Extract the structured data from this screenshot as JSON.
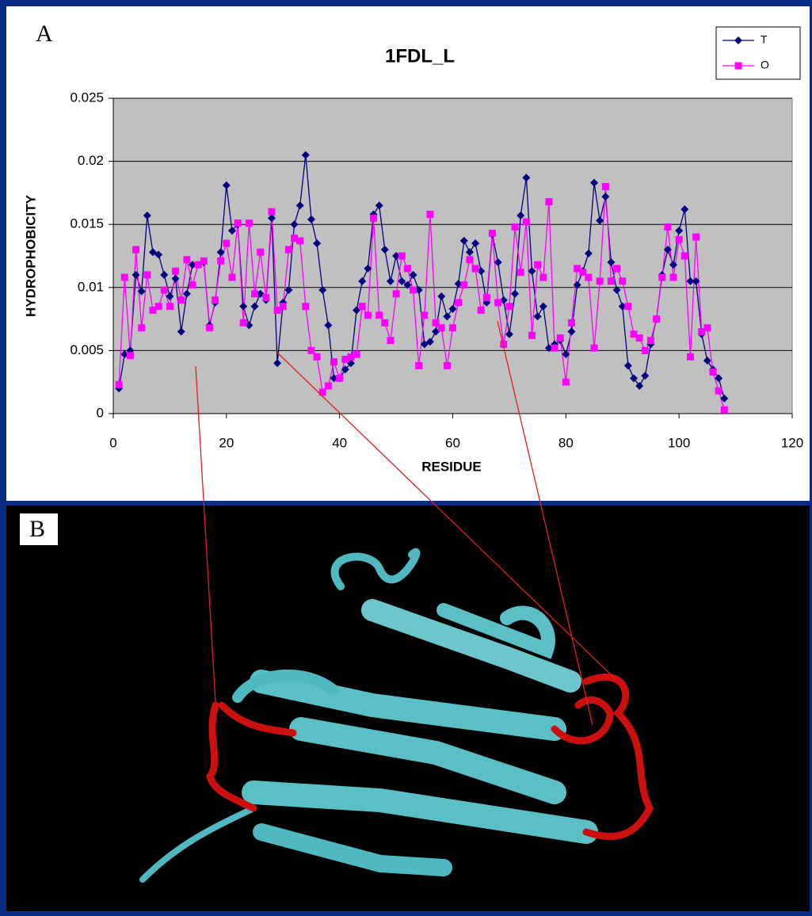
{
  "figure": {
    "panel_a_label": "A",
    "panel_b_label": "B"
  },
  "chart_data": {
    "type": "line",
    "title": "1FDL_L",
    "x_label": "RESIDUE",
    "y_label": "HYDROPHOBICITY",
    "x": [
      1,
      2,
      3,
      4,
      5,
      6,
      7,
      8,
      9,
      10,
      11,
      12,
      13,
      14,
      15,
      16,
      17,
      18,
      19,
      20,
      21,
      22,
      23,
      24,
      25,
      26,
      27,
      28,
      29,
      30,
      31,
      32,
      33,
      34,
      35,
      36,
      37,
      38,
      39,
      40,
      41,
      42,
      43,
      44,
      45,
      46,
      47,
      48,
      49,
      50,
      51,
      52,
      53,
      54,
      55,
      56,
      57,
      58,
      59,
      60,
      61,
      62,
      63,
      64,
      65,
      66,
      67,
      68,
      69,
      70,
      71,
      72,
      73,
      74,
      75,
      76,
      77,
      78,
      79,
      80,
      81,
      82,
      83,
      84,
      85,
      86,
      87,
      88,
      89,
      90,
      91,
      92,
      93,
      94,
      95,
      96,
      97,
      98,
      99,
      100,
      101,
      102,
      103,
      104,
      105,
      106,
      107,
      108
    ],
    "series": [
      {
        "name": "T",
        "color": "#000080",
        "marker": "diamond",
        "values": [
          0.002,
          0.0047,
          0.005,
          0.011,
          0.0097,
          0.0157,
          0.0128,
          0.0126,
          0.011,
          0.0093,
          0.0107,
          0.0065,
          0.0095,
          0.0118,
          0.0118,
          0.012,
          0.007,
          0.0088,
          0.0128,
          0.0181,
          0.0145,
          0.015,
          0.0085,
          0.007,
          0.0085,
          0.0095,
          0.009,
          0.0155,
          0.004,
          0.0088,
          0.0098,
          0.015,
          0.0165,
          0.0205,
          0.0154,
          0.0135,
          0.0098,
          0.007,
          0.0028,
          0.0028,
          0.0035,
          0.004,
          0.0082,
          0.0105,
          0.0115,
          0.0158,
          0.0165,
          0.013,
          0.0105,
          0.0125,
          0.0105,
          0.0102,
          0.011,
          0.0098,
          0.0055,
          0.0057,
          0.0065,
          0.0093,
          0.0077,
          0.0083,
          0.0103,
          0.0137,
          0.0128,
          0.0135,
          0.0113,
          0.0088,
          0.0142,
          0.012,
          0.009,
          0.0063,
          0.0095,
          0.0157,
          0.0187,
          0.0113,
          0.0077,
          0.0085,
          0.0052,
          0.0055,
          0.0058,
          0.0047,
          0.0065,
          0.0102,
          0.0113,
          0.0127,
          0.0183,
          0.0153,
          0.0172,
          0.012,
          0.0098,
          0.0085,
          0.0038,
          0.0028,
          0.0022,
          0.003,
          0.0055,
          0.0075,
          0.011,
          0.013,
          0.0118,
          0.0145,
          0.0162,
          0.0105,
          0.0105,
          0.0063,
          0.0042,
          0.0035,
          0.0028,
          0.0012
        ]
      },
      {
        "name": "O",
        "color": "#ff00ff",
        "marker": "square",
        "values": [
          0.0023,
          0.0108,
          0.0046,
          0.013,
          0.0068,
          0.011,
          0.0082,
          0.0085,
          0.0098,
          0.0085,
          0.0113,
          0.009,
          0.0122,
          0.0102,
          0.0118,
          0.0121,
          0.0068,
          0.009,
          0.0121,
          0.0135,
          0.0108,
          0.0151,
          0.0072,
          0.0151,
          0.0095,
          0.0128,
          0.0092,
          0.016,
          0.0082,
          0.0085,
          0.013,
          0.0139,
          0.0137,
          0.0085,
          0.005,
          0.0045,
          0.0017,
          0.0022,
          0.0041,
          0.0028,
          0.0043,
          0.0045,
          0.0047,
          0.0085,
          0.0078,
          0.0155,
          0.0078,
          0.0072,
          0.0058,
          0.0095,
          0.0125,
          0.0115,
          0.0098,
          0.0038,
          0.0078,
          0.0158,
          0.0072,
          0.0068,
          0.0038,
          0.0068,
          0.0088,
          0.0102,
          0.0122,
          0.0115,
          0.0082,
          0.0092,
          0.0143,
          0.0088,
          0.0055,
          0.0085,
          0.0148,
          0.0112,
          0.0152,
          0.0062,
          0.0118,
          0.0108,
          0.0168,
          0.0052,
          0.006,
          0.0025,
          0.0072,
          0.0115,
          0.0112,
          0.0108,
          0.0052,
          0.0105,
          0.018,
          0.0105,
          0.0115,
          0.0105,
          0.0085,
          0.0063,
          0.006,
          0.005,
          0.0058,
          0.0075,
          0.0108,
          0.0148,
          0.0108,
          0.0138,
          0.0125,
          0.0045,
          0.014,
          0.0065,
          0.0068,
          0.0033,
          0.0018,
          0.0003
        ]
      }
    ],
    "xlim": [
      0,
      120
    ],
    "xticks": [
      0,
      20,
      40,
      60,
      80,
      100,
      120
    ],
    "ylim": [
      0,
      0.025
    ],
    "yticks": [
      0,
      0.005,
      0.01,
      0.015,
      0.02,
      0.025
    ],
    "grid": true,
    "legend": "top-right",
    "plot_background": "#c0c0c0"
  }
}
